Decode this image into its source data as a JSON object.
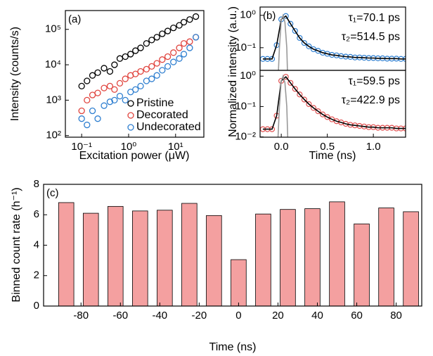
{
  "chart_data": [
    {
      "type": "scatter",
      "panel_label": "(a)",
      "xlabel": "Excitation power (μW)",
      "ylabel": "Intensity (counts/s)",
      "xlog": true,
      "ylog": true,
      "xlim": [
        0.045,
        40
      ],
      "ylim": [
        90,
        340000
      ],
      "xticks": [
        {
          "value": 0.1,
          "label": "10⁻¹"
        },
        {
          "value": 1,
          "label": "10⁰"
        },
        {
          "value": 10,
          "label": "10¹"
        }
      ],
      "yticks": [
        {
          "value": 100,
          "label": "10²"
        },
        {
          "value": 1000,
          "label": "10³"
        },
        {
          "value": 10000,
          "label": "10⁴"
        },
        {
          "value": 100000,
          "label": "10⁵"
        }
      ],
      "legend": "lower right",
      "x": [
        0.1,
        0.13,
        0.17,
        0.22,
        0.3,
        0.4,
        0.5,
        0.65,
        0.85,
        1.1,
        1.4,
        1.8,
        2.4,
        3.1,
        4,
        5.2,
        6.8,
        9,
        12,
        15,
        20,
        27
      ],
      "series": [
        {
          "name": "Pristine",
          "color": "#000000",
          "values": [
            2500,
            3500,
            5000,
            6000,
            8000,
            6500,
            10000,
            15000,
            17000,
            20000,
            25000,
            30000,
            40000,
            50000,
            60000,
            75000,
            90000,
            110000,
            130000,
            160000,
            190000,
            230000
          ]
        },
        {
          "name": "Decorated",
          "color": "#e0453f",
          "values": [
            500,
            1000,
            1400,
            1600,
            2200,
            2500,
            2000,
            3000,
            4000,
            5000,
            5500,
            6500,
            7500,
            9000,
            11000,
            14000,
            17000,
            22000,
            30000,
            40000,
            45000,
            60000
          ]
        },
        {
          "name": "Undecorated",
          "color": "#2f7fd0",
          "values": [
            300,
            200,
            500,
            300,
            700,
            900,
            1000,
            1300,
            1000,
            1700,
            2000,
            2500,
            3500,
            4000,
            5000,
            7000,
            9000,
            12000,
            15000,
            20000,
            30000,
            60000
          ]
        }
      ]
    },
    {
      "type": "line",
      "panel_label": "(b)",
      "ylabel": "Normalized intensity (a.u.)",
      "ylog": true,
      "xlim": [
        -0.23,
        1.35
      ],
      "ylim": [
        0.02,
        1.8
      ],
      "yticks": [
        {
          "value": 0.1,
          "label": "10⁻¹"
        },
        {
          "value": 1,
          "label": "10⁰"
        }
      ],
      "annotations": [
        "τ₁=70.1 ps",
        "τ₂=514.5 ps"
      ],
      "series": [
        {
          "style": "markers",
          "color": "#2f7fd0",
          "x": [
            -0.2,
            -0.15,
            -0.1,
            -0.05,
            0,
            0.05,
            0.1,
            0.15,
            0.2,
            0.25,
            0.3,
            0.35,
            0.4,
            0.45,
            0.5,
            0.55,
            0.6,
            0.65,
            0.7,
            0.75,
            0.8,
            0.85,
            0.9,
            0.95,
            1.0,
            1.05,
            1.1,
            1.15,
            1.2,
            1.25,
            1.3,
            1.35
          ],
          "values": [
            0.045,
            0.045,
            0.045,
            0.12,
            0.75,
            0.95,
            0.55,
            0.33,
            0.2,
            0.14,
            0.11,
            0.09,
            0.08,
            0.07,
            0.065,
            0.06,
            0.058,
            0.055,
            0.053,
            0.052,
            0.05,
            0.05,
            0.049,
            0.048,
            0.048,
            0.047,
            0.047,
            0.046,
            0.046,
            0.046,
            0.045,
            0.045
          ]
        },
        {
          "style": "line",
          "color": "#000000",
          "x": [
            -0.2,
            -0.15,
            -0.1,
            -0.05,
            0,
            0.05,
            0.1,
            0.15,
            0.2,
            0.25,
            0.3,
            0.35,
            0.4,
            0.45,
            0.5,
            0.55,
            0.6,
            0.65,
            0.7,
            0.75,
            0.8,
            0.85,
            0.9,
            0.95,
            1.0,
            1.05,
            1.1,
            1.15,
            1.2,
            1.25,
            1.3,
            1.35
          ],
          "values": [
            0.045,
            0.045,
            0.045,
            0.12,
            0.75,
            0.95,
            0.55,
            0.33,
            0.2,
            0.14,
            0.11,
            0.09,
            0.08,
            0.07,
            0.065,
            0.06,
            0.058,
            0.055,
            0.053,
            0.052,
            0.05,
            0.05,
            0.049,
            0.048,
            0.048,
            0.047,
            0.047,
            0.046,
            0.046,
            0.046,
            0.045,
            0.045
          ]
        },
        {
          "style": "line",
          "color": "#999999",
          "x": [
            -0.05,
            -0.02,
            0,
            0.02,
            0.04,
            0.06,
            0.08
          ],
          "values": [
            0.001,
            0.1,
            0.7,
            1.0,
            0.6,
            0.1,
            0.001
          ]
        }
      ]
    },
    {
      "type": "line",
      "xlabel": "Time (ns)",
      "ylog": true,
      "xlim": [
        -0.23,
        1.35
      ],
      "ylim": [
        0.0098,
        1.55
      ],
      "xticks": [
        {
          "value": 0,
          "label": "0.0"
        },
        0.5,
        {
          "value": 1,
          "label": "1.0"
        }
      ],
      "yticks": [
        {
          "value": 0.01,
          "label": "10⁻²"
        },
        {
          "value": 0.1,
          "label": "10⁻¹"
        },
        {
          "value": 1,
          "label": "10⁰"
        }
      ],
      "annotations": [
        "τ₁=59.5 ps",
        "τ₂=422.9 ps"
      ],
      "series": [
        {
          "style": "markers",
          "color": "#e05050",
          "x": [
            -0.2,
            -0.15,
            -0.1,
            -0.05,
            0,
            0.05,
            0.1,
            0.15,
            0.2,
            0.25,
            0.3,
            0.35,
            0.4,
            0.45,
            0.5,
            0.55,
            0.6,
            0.65,
            0.7,
            0.75,
            0.8,
            0.85,
            0.9,
            0.95,
            1.0,
            1.05,
            1.1,
            1.15,
            1.2,
            1.25,
            1.3,
            1.35
          ],
          "values": [
            0.018,
            0.018,
            0.018,
            0.05,
            0.7,
            0.95,
            0.6,
            0.38,
            0.25,
            0.17,
            0.12,
            0.09,
            0.07,
            0.055,
            0.045,
            0.038,
            0.033,
            0.03,
            0.027,
            0.025,
            0.024,
            0.023,
            0.022,
            0.021,
            0.021,
            0.02,
            0.02,
            0.02,
            0.02,
            0.019,
            0.019,
            0.019
          ]
        },
        {
          "style": "line",
          "color": "#000000",
          "x": [
            -0.2,
            -0.15,
            -0.1,
            -0.05,
            0,
            0.05,
            0.1,
            0.15,
            0.2,
            0.25,
            0.3,
            0.35,
            0.4,
            0.45,
            0.5,
            0.55,
            0.6,
            0.65,
            0.7,
            0.75,
            0.8,
            0.85,
            0.9,
            0.95,
            1.0,
            1.05,
            1.1,
            1.15,
            1.2,
            1.25,
            1.3,
            1.35
          ],
          "values": [
            0.018,
            0.018,
            0.018,
            0.05,
            0.7,
            0.95,
            0.6,
            0.38,
            0.25,
            0.17,
            0.12,
            0.09,
            0.07,
            0.055,
            0.045,
            0.038,
            0.033,
            0.03,
            0.027,
            0.025,
            0.024,
            0.023,
            0.022,
            0.021,
            0.021,
            0.02,
            0.02,
            0.02,
            0.02,
            0.019,
            0.019,
            0.019
          ]
        },
        {
          "style": "line",
          "color": "#999999",
          "x": [
            -0.05,
            -0.02,
            0,
            0.02,
            0.04,
            0.06,
            0.08
          ],
          "values": [
            0.001,
            0.1,
            0.7,
            1.0,
            0.6,
            0.1,
            0.001
          ]
        }
      ]
    },
    {
      "type": "bar",
      "panel_label": "(c)",
      "xlabel": "Time (ns)",
      "ylabel": "Binned count rate (h⁻¹)",
      "xlim": [
        -99,
        93
      ],
      "ylim": [
        0,
        8
      ],
      "bin_width": 12.5,
      "xticks": [
        -80,
        -60,
        -40,
        -20,
        0,
        20,
        40,
        60,
        80
      ],
      "yticks": [
        0,
        2,
        4,
        6,
        8
      ],
      "color": "#f4a0a0",
      "x": [
        -87.5,
        -75,
        -62.5,
        -50,
        -37.5,
        -25,
        -12.5,
        0,
        12.5,
        25,
        37.5,
        50,
        62.5,
        75,
        87.5
      ],
      "values": [
        6.8,
        6.1,
        6.55,
        6.25,
        6.3,
        6.75,
        5.95,
        3.05,
        6.05,
        6.35,
        6.4,
        6.85,
        5.4,
        6.45,
        6.2
      ]
    }
  ]
}
